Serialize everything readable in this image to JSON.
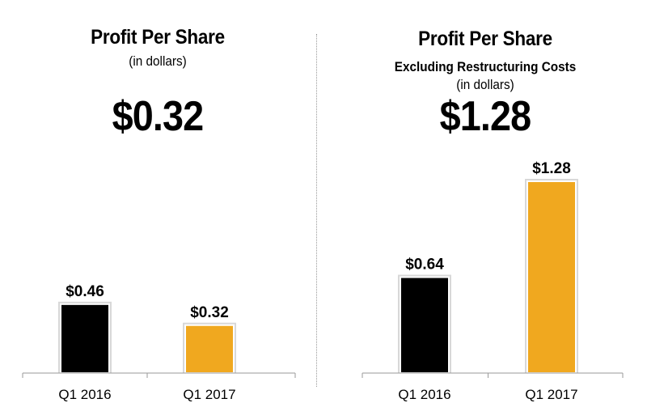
{
  "colors": {
    "q1_2016": "#000000",
    "q1_2017": "#F0A81F",
    "axis": "#9a9a9a"
  },
  "chart_data": [
    {
      "type": "bar",
      "title": "Profit Per Share",
      "subtitle": "(in dollars)",
      "headline": "$0.32",
      "categories": [
        "Q1 2016",
        "Q1 2017"
      ],
      "values": [
        0.46,
        0.32
      ],
      "value_labels": [
        "$0.46",
        "$0.32"
      ],
      "ylim": [
        0,
        1.28
      ],
      "grid": false
    },
    {
      "type": "bar",
      "title": "Profit Per Share",
      "subtitle_bold": "Excluding Restructuring Costs",
      "subtitle": "(in dollars)",
      "headline": "$1.28",
      "categories": [
        "Q1 2016",
        "Q1 2017"
      ],
      "values": [
        0.64,
        1.28
      ],
      "value_labels": [
        "$0.64",
        "$1.28"
      ],
      "ylim": [
        0,
        1.28
      ],
      "grid": false
    }
  ]
}
